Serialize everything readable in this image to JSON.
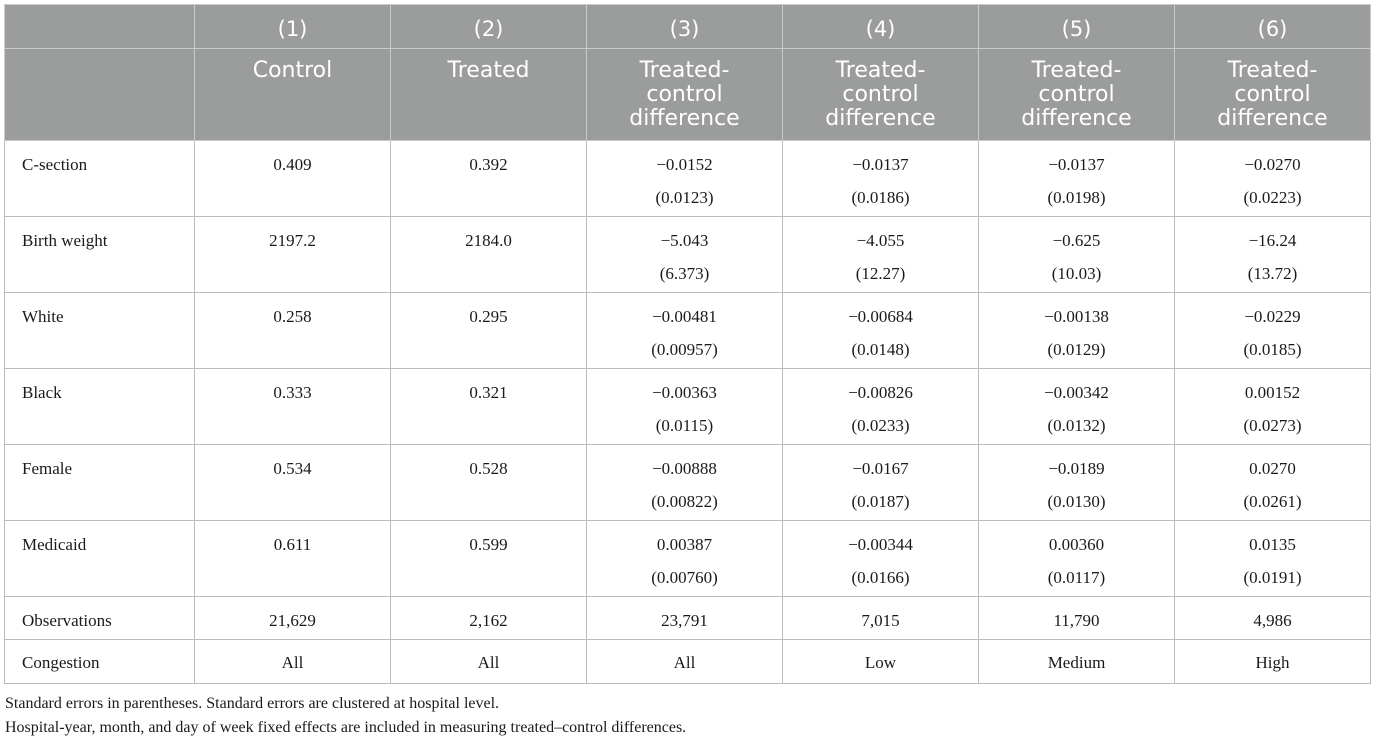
{
  "header": {
    "col_numbers": [
      "(1)",
      "(2)",
      "(3)",
      "(4)",
      "(5)",
      "(6)"
    ],
    "col_titles": [
      "Control",
      "Treated",
      "Treated-\ncontrol\ndifference",
      "Treated-\ncontrol\ndifference",
      "Treated-\ncontrol\ndifference",
      "Treated-\ncontrol\ndifference"
    ]
  },
  "rows": [
    {
      "label": "C-section",
      "values": [
        "0.409",
        "0.392",
        "−0.0152",
        "−0.0137",
        "−0.0137",
        "−0.0270"
      ],
      "se": [
        "",
        "",
        "(0.0123)",
        "(0.0186)",
        "(0.0198)",
        "(0.0223)"
      ]
    },
    {
      "label": "Birth weight",
      "values": [
        "2197.2",
        "2184.0",
        "−5.043",
        "−4.055",
        "−0.625",
        "−16.24"
      ],
      "se": [
        "",
        "",
        "(6.373)",
        "(12.27)",
        "(10.03)",
        "(13.72)"
      ]
    },
    {
      "label": "White",
      "values": [
        "0.258",
        "0.295",
        "−0.00481",
        "−0.00684",
        "−0.00138",
        "−0.0229"
      ],
      "se": [
        "",
        "",
        "(0.00957)",
        "(0.0148)",
        "(0.0129)",
        "(0.0185)"
      ]
    },
    {
      "label": "Black",
      "values": [
        "0.333",
        "0.321",
        "−0.00363",
        "−0.00826",
        "−0.00342",
        "0.00152"
      ],
      "se": [
        "",
        "",
        "(0.0115)",
        "(0.0233)",
        "(0.0132)",
        "(0.0273)"
      ]
    },
    {
      "label": "Female",
      "values": [
        "0.534",
        "0.528",
        "−0.00888",
        "−0.0167",
        "−0.0189",
        "0.0270"
      ],
      "se": [
        "",
        "",
        "(0.00822)",
        "(0.0187)",
        "(0.0130)",
        "(0.0261)"
      ]
    },
    {
      "label": "Medicaid",
      "values": [
        "0.611",
        "0.599",
        "0.00387",
        "−0.00344",
        "0.00360",
        "0.0135"
      ],
      "se": [
        "",
        "",
        "(0.00760)",
        "(0.0166)",
        "(0.0117)",
        "(0.0191)"
      ]
    }
  ],
  "observations": {
    "label": "Observations",
    "values": [
      "21,629",
      "2,162",
      "23,791",
      "7,015",
      "11,790",
      "4,986"
    ]
  },
  "congestion": {
    "label": "Congestion",
    "values": [
      "All",
      "All",
      "All",
      "Low",
      "Medium",
      "High"
    ]
  },
  "notes": [
    "Standard errors in parentheses. Standard errors are clustered at hospital level.",
    "Hospital-year, month, and day of week fixed effects are included in measuring treated–control differences."
  ],
  "colors": {
    "header_bg": "#9a9d9c",
    "header_text": "#ffffff",
    "grid": "#b9bcbb"
  }
}
